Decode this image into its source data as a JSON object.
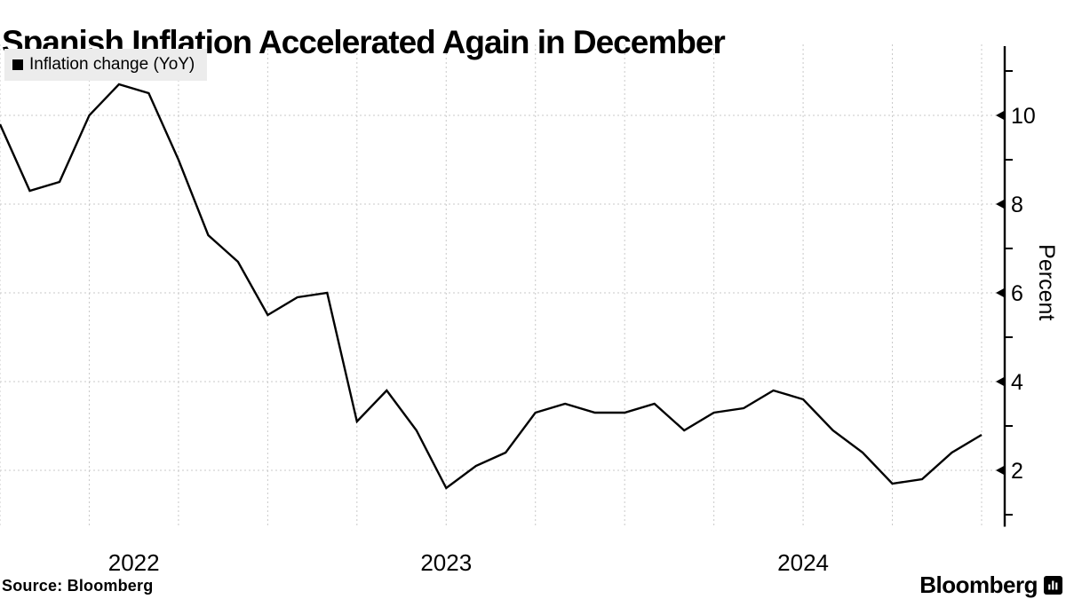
{
  "header": {
    "title": "Spanish Inflation Accelerated Again in December"
  },
  "legend": {
    "label": "Inflation change (YoY)",
    "swatch_color": "#000000",
    "bg_color": "#ececec"
  },
  "footer": {
    "source": "Source: Bloomberg",
    "brand": "Bloomberg",
    "brand_icon": "bar-chart-icon"
  },
  "chart_data": {
    "type": "line",
    "title": "Spanish Inflation Accelerated Again in December",
    "series": [
      {
        "name": "Inflation change (YoY)",
        "values": [
          9.8,
          8.3,
          8.5,
          10.0,
          10.7,
          10.5,
          9.0,
          7.3,
          6.7,
          5.5,
          5.9,
          6.0,
          3.1,
          3.8,
          2.9,
          1.6,
          2.1,
          2.4,
          3.3,
          3.5,
          3.3,
          3.3,
          3.5,
          2.9,
          3.3,
          3.4,
          3.8,
          3.6,
          2.9,
          2.4,
          1.7,
          1.8,
          2.4,
          2.8
        ]
      }
    ],
    "x": [
      "Mar 2022",
      "Apr 2022",
      "May 2022",
      "Jun 2022",
      "Jul 2022",
      "Aug 2022",
      "Sep 2022",
      "Oct 2022",
      "Nov 2022",
      "Dec 2022",
      "Jan 2023",
      "Feb 2023",
      "Mar 2023",
      "Apr 2023",
      "May 2023",
      "Jun 2023",
      "Jul 2023",
      "Aug 2023",
      "Sep 2023",
      "Oct 2023",
      "Nov 2023",
      "Dec 2023",
      "Jan 2024",
      "Feb 2024",
      "Mar 2024",
      "Apr 2024",
      "May 2024",
      "Jun 2024",
      "Jul 2024",
      "Aug 2024",
      "Sep 2024",
      "Oct 2024",
      "Nov 2024",
      "Dec 2024"
    ],
    "xlabel": "",
    "ylabel": "Percent",
    "ylim": [
      0.75,
      11.6
    ],
    "y_ticks_major": [
      2,
      4,
      6,
      8,
      10
    ],
    "y_ticks_minor": [
      1,
      3,
      5,
      7,
      9,
      11
    ],
    "x_gridline_every_months": 3,
    "year_ticks": [
      {
        "label": "2022",
        "month_index": 4.5
      },
      {
        "label": "2023",
        "month_index": 15
      },
      {
        "label": "2024",
        "month_index": 27
      }
    ],
    "grid": true,
    "legend_position": "top-left",
    "axis_side": "right",
    "line_color": "#000000",
    "grid_color": "#c9c9c9",
    "axis_color": "#000000"
  }
}
